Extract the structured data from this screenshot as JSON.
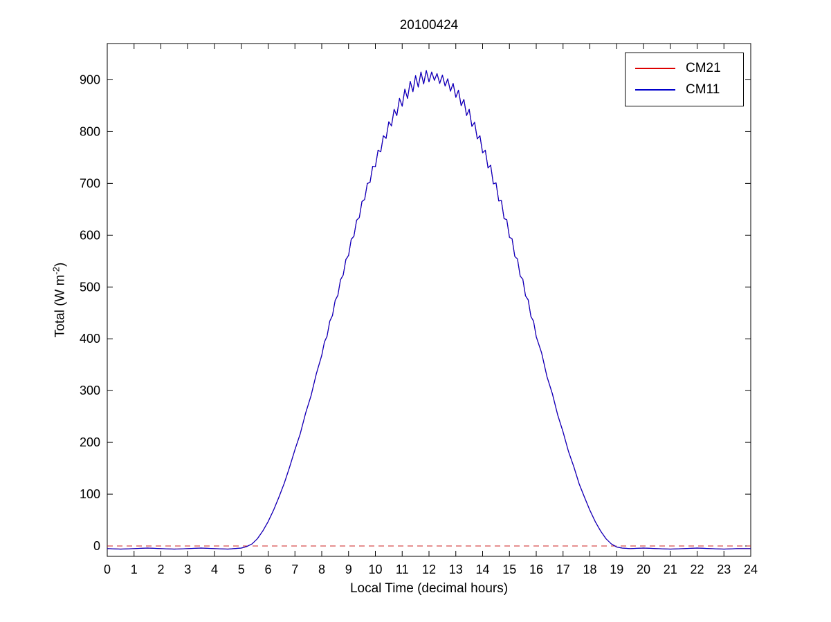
{
  "figure": {
    "title": "20100424",
    "xlabel": "Local Time (decimal hours)",
    "ylabel": {
      "prefix": "Total (W m",
      "superscript": "-2",
      "suffix": ")"
    }
  },
  "chart_data": {
    "type": "line",
    "title": "20100424",
    "xlabel": "Local Time (decimal hours)",
    "ylabel": "Total (W m^-2)",
    "xlim": [
      0,
      24
    ],
    "ylim": [
      -20,
      970
    ],
    "xticks": [
      0,
      1,
      2,
      3,
      4,
      5,
      6,
      7,
      8,
      9,
      10,
      11,
      12,
      13,
      14,
      15,
      16,
      17,
      18,
      19,
      20,
      21,
      22,
      23,
      24
    ],
    "yticks": [
      0,
      100,
      200,
      300,
      400,
      500,
      600,
      700,
      800,
      900
    ],
    "grid": false,
    "legend_position": "top-right",
    "axes_color": "#000000",
    "zero_line": {
      "y": 0,
      "color": "#cc2222",
      "style": "dashed"
    },
    "x": [
      0,
      0.5,
      1,
      1.5,
      2,
      2.5,
      3,
      3.5,
      4,
      4.5,
      5,
      5.2,
      5.4,
      5.6,
      5.8,
      6,
      6.2,
      6.4,
      6.6,
      6.8,
      7,
      7.2,
      7.4,
      7.6,
      7.8,
      8,
      8.1,
      8.2,
      8.3,
      8.4,
      8.5,
      8.6,
      8.7,
      8.8,
      8.9,
      9,
      9.1,
      9.2,
      9.3,
      9.4,
      9.5,
      9.6,
      9.7,
      9.8,
      9.9,
      10,
      10.1,
      10.2,
      10.3,
      10.4,
      10.5,
      10.6,
      10.7,
      10.8,
      10.9,
      11,
      11.1,
      11.2,
      11.3,
      11.4,
      11.5,
      11.6,
      11.7,
      11.8,
      11.9,
      12,
      12.1,
      12.2,
      12.3,
      12.4,
      12.5,
      12.6,
      12.7,
      12.8,
      12.9,
      13,
      13.1,
      13.2,
      13.3,
      13.4,
      13.5,
      13.6,
      13.7,
      13.8,
      13.9,
      14,
      14.1,
      14.2,
      14.3,
      14.4,
      14.5,
      14.6,
      14.7,
      14.8,
      14.9,
      15,
      15.1,
      15.2,
      15.3,
      15.4,
      15.5,
      15.6,
      15.7,
      15.8,
      15.9,
      16,
      16.2,
      16.4,
      16.6,
      16.8,
      17,
      17.2,
      17.4,
      17.6,
      17.8,
      18,
      18.2,
      18.4,
      18.6,
      18.8,
      19,
      19.2,
      19.5,
      20,
      20.5,
      21,
      21.5,
      22,
      22.5,
      23,
      23.5,
      24
    ],
    "series": [
      {
        "name": "CM21",
        "color": "#dd0000",
        "style": "solid",
        "values_same_as": "CM11",
        "note": "CM21 trace coincides with CM11 and is hidden beneath it"
      },
      {
        "name": "CM11",
        "color": "#0000cc",
        "style": "solid",
        "values": [
          -5,
          -6,
          -5,
          -4,
          -5,
          -6,
          -5,
          -4,
          -5,
          -6,
          -4,
          -1,
          4,
          14,
          29,
          47,
          69,
          94,
          121,
          152,
          186,
          217,
          257,
          290,
          333,
          368,
          394,
          405,
          434,
          445,
          474,
          484,
          514,
          523,
          553,
          561,
          592,
          598,
          629,
          634,
          665,
          669,
          700,
          702,
          733,
          732,
          764,
          761,
          792,
          787,
          819,
          811,
          843,
          831,
          864,
          849,
          882,
          864,
          897,
          877,
          908,
          886,
          915,
          892,
          918,
          896,
          915,
          899,
          912,
          893,
          909,
          888,
          902,
          878,
          893,
          866,
          880,
          850,
          862,
          831,
          843,
          810,
          818,
          786,
          792,
          759,
          764,
          730,
          735,
          699,
          701,
          666,
          667,
          632,
          630,
          596,
          593,
          559,
          554,
          521,
          515,
          483,
          475,
          443,
          434,
          404,
          373,
          327,
          294,
          253,
          220,
          183,
          153,
          120,
          94,
          69,
          47,
          29,
          14,
          4,
          -2,
          -4,
          -5,
          -4,
          -5,
          -6,
          -5,
          -4,
          -5,
          -6,
          -5,
          -5
        ]
      }
    ]
  }
}
